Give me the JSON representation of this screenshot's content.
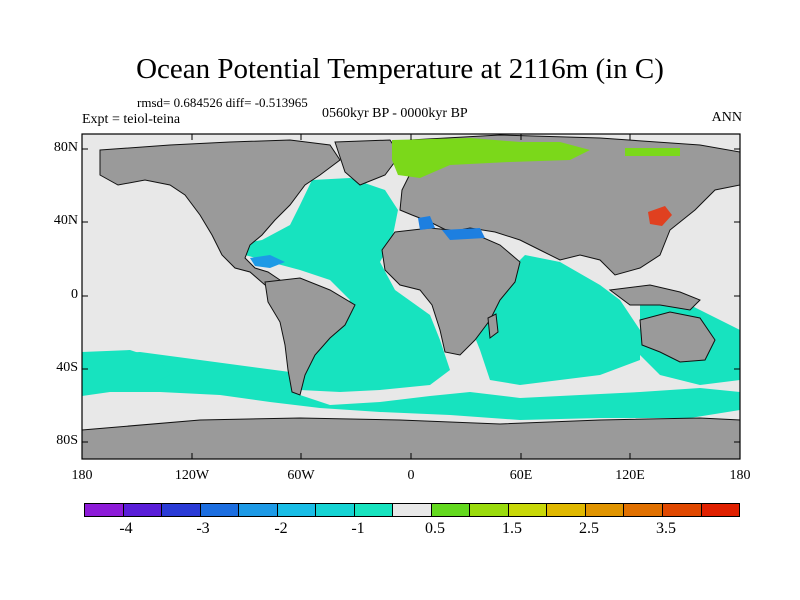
{
  "title": "Ocean Potential Temperature at 2116m (in C)",
  "stats": "rmsd= 0.684526 diff= -0.513965",
  "period": "0560kyr BP - 0000kyr BP",
  "experiment": "Expt = teiol-teina",
  "season": "ANN",
  "axes": {
    "y_ticks": [
      "80N",
      "40N",
      "0",
      "40S",
      "80S"
    ],
    "x_ticks": [
      "180",
      "120W",
      "60W",
      "0",
      "60E",
      "120E",
      "180"
    ]
  },
  "colorbar": {
    "colors": [
      "#8d1bd8",
      "#5a1ed8",
      "#2a3bd6",
      "#1c6ee0",
      "#1d9ae6",
      "#19bde6",
      "#15d3d3",
      "#17e3bf",
      "#e8e8e8",
      "#63d91e",
      "#9adb0c",
      "#c8d808",
      "#e0b800",
      "#e09400",
      "#e07000",
      "#e04800",
      "#e02000"
    ],
    "labels": [
      "-4",
      "-3",
      "-2",
      "-1",
      "0.5",
      "1.5",
      "2.5",
      "3.5"
    ]
  },
  "map_colors": {
    "land": "#9a9a9a",
    "ocean_main": "#17e3bf",
    "ocean_neutral": "#e8e8e8",
    "arctic_warm": "#7bd81a",
    "east_asia_hot": "#e04020",
    "med_cold": "#1d7fe0"
  }
}
